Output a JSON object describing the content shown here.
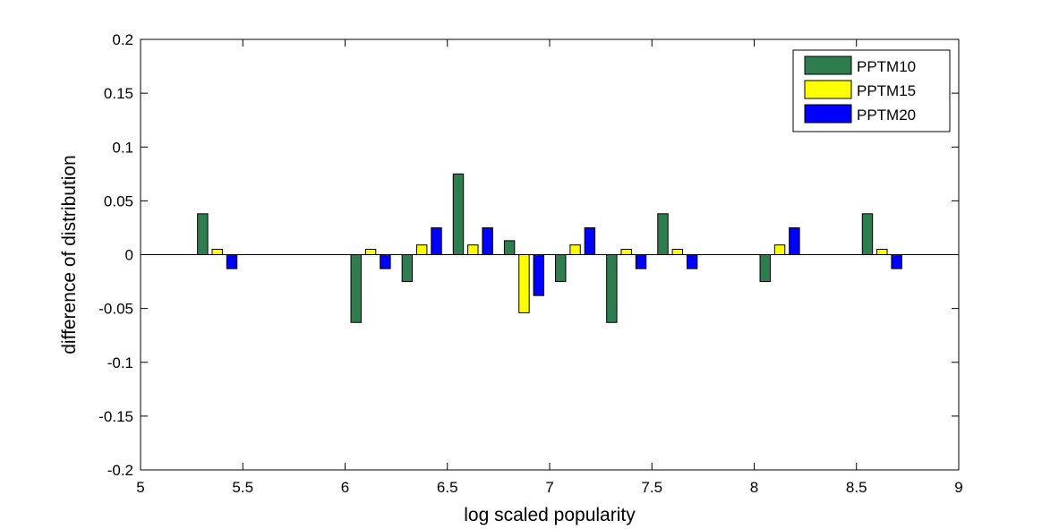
{
  "chart_data": {
    "type": "bar",
    "xlabel": "log scaled popularity",
    "ylabel": "difference of distribution",
    "xlim": [
      5,
      9
    ],
    "ylim": [
      -0.2,
      0.2
    ],
    "xticks": [
      "5",
      "5.5",
      "6",
      "6.5",
      "7",
      "7.5",
      "8",
      "8.5",
      "9"
    ],
    "yticks": [
      "-0.2",
      "-0.15",
      "-0.1",
      "-0.05",
      "0",
      "0.05",
      "0.1",
      "0.15",
      "0.2"
    ],
    "x": [
      5.375,
      6.125,
      6.375,
      6.625,
      6.875,
      7.125,
      7.375,
      7.625,
      8.125,
      8.625
    ],
    "series": [
      {
        "name": "PPTM10",
        "color": "#2e7d4f",
        "values": [
          0.038,
          -0.063,
          -0.025,
          0.075,
          0.013,
          -0.025,
          -0.063,
          0.038,
          -0.025,
          0.038
        ]
      },
      {
        "name": "PPTM15",
        "color": "#ffff00",
        "values": [
          0.005,
          0.005,
          0.009,
          0.009,
          -0.054,
          0.009,
          0.005,
          0.005,
          0.009,
          0.005
        ]
      },
      {
        "name": "PPTM20",
        "color": "#0000ff",
        "values": [
          -0.013,
          -0.013,
          0.025,
          0.025,
          -0.038,
          0.025,
          -0.013,
          -0.013,
          0.025,
          -0.013
        ]
      }
    ],
    "grid": false,
    "legend_position": "top-right"
  }
}
